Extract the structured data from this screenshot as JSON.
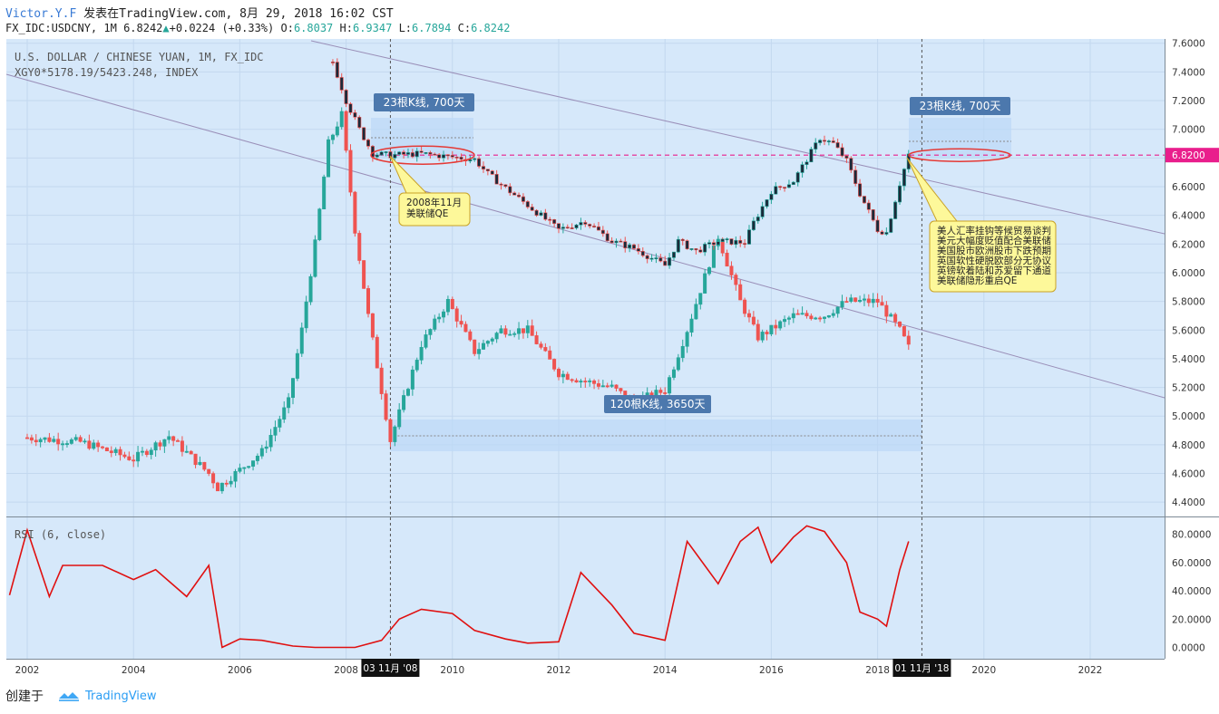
{
  "header": {
    "author": "Victor.Y.F",
    "publish_text": "发表在TradingView.com, 8月 29, 2018 16:02 CST",
    "symbol": "FX_IDC:USDCNY, 1M",
    "last": "6.8242",
    "change": "+0.0224 (+0.33%)",
    "open_label": "O:",
    "open": "6.8037",
    "high_label": "H:",
    "high": "6.9347",
    "low_label": "L:",
    "low": "6.7894",
    "close_label": "C:",
    "close": "6.8242"
  },
  "legend": {
    "line1": "U.S. DOLLAR / CHINESE YUAN, 1M, FX_IDC",
    "line2": "XGY0*5178.19/5423.248, INDEX"
  },
  "rsi_label": "RSI (6, close)",
  "price_tag": "6.8200",
  "annotations": {
    "range1": "23根K线, 700天",
    "range2": "23根K线, 700天",
    "range3": "120根K线, 3650天",
    "callout1": [
      "2008年11月",
      "美联储QE"
    ],
    "callout2": [
      "美人汇率挂钩等候贸易谈判",
      "美元大幅度贬值配合美联储",
      "美国股市欧洲股市下跌预期",
      "英国软性硬脱欧部分无协议",
      "英镑软着陆和苏爱留下通道",
      "美联储隐形重启QE"
    ],
    "date_tag1": "03 11月 '08",
    "date_tag2": "01 11月 '18"
  },
  "footer": {
    "created": "创建于",
    "brand": "TradingView"
  },
  "colors": {
    "up": "#26a69a",
    "down": "#ef5350",
    "bg": "#d6e8fa",
    "rsi": "#e01010",
    "pink": "#e91e8c",
    "trend": "#9a8fb8"
  },
  "chart_data": [
    {
      "type": "candlestick",
      "title": "U.S. DOLLAR / CHINESE YUAN, 1M, FX_IDC",
      "x_ticks": [
        "2002",
        "2004",
        "2006",
        "2008",
        "2010",
        "2012",
        "2014",
        "2016",
        "2018",
        "2020",
        "2022"
      ],
      "y_ticks": [
        "4.4000",
        "4.6000",
        "4.8000",
        "5.0000",
        "5.2000",
        "5.4000",
        "5.6000",
        "5.8000",
        "6.0000",
        "6.2000",
        "6.4000",
        "6.6000",
        "6.8000",
        "7.0000",
        "7.2000",
        "7.4000",
        "7.6000"
      ],
      "ylim": [
        4.3,
        7.63
      ],
      "usdcny_close": [
        [
          "2007-10",
          7.47
        ],
        [
          "2008-01",
          7.2
        ],
        [
          "2008-04",
          7.0
        ],
        [
          "2008-07",
          6.83
        ],
        [
          "2008-11",
          6.82
        ],
        [
          "2009-06",
          6.83
        ],
        [
          "2010-06",
          6.79
        ],
        [
          "2010-09",
          6.69
        ],
        [
          "2011-01",
          6.59
        ],
        [
          "2011-06",
          6.47
        ],
        [
          "2012-01",
          6.3
        ],
        [
          "2012-07",
          6.36
        ],
        [
          "2013-01",
          6.22
        ],
        [
          "2013-06",
          6.17
        ],
        [
          "2014-01",
          6.05
        ],
        [
          "2014-04",
          6.22
        ],
        [
          "2014-08",
          6.15
        ],
        [
          "2015-01",
          6.22
        ],
        [
          "2015-07",
          6.21
        ],
        [
          "2015-09",
          6.35
        ],
        [
          "2016-01",
          6.57
        ],
        [
          "2016-06",
          6.64
        ],
        [
          "2016-12",
          6.94
        ],
        [
          "2017-03",
          6.9
        ],
        [
          "2017-06",
          6.78
        ],
        [
          "2017-09",
          6.55
        ],
        [
          "2018-01",
          6.3
        ],
        [
          "2018-03",
          6.28
        ],
        [
          "2018-06",
          6.62
        ],
        [
          "2018-08",
          6.8242
        ]
      ],
      "index_close": [
        [
          "2002-01",
          4.85
        ],
        [
          "2003-01",
          4.82
        ],
        [
          "2004-01",
          4.7
        ],
        [
          "2004-09",
          4.86
        ],
        [
          "2005-06",
          4.6
        ],
        [
          "2005-08",
          4.5
        ],
        [
          "2006-06",
          4.75
        ],
        [
          "2006-12",
          5.1
        ],
        [
          "2007-03",
          5.6
        ],
        [
          "2007-06",
          6.2
        ],
        [
          "2007-09",
          6.9
        ],
        [
          "2007-12",
          7.1
        ],
        [
          "2008-03",
          6.3
        ],
        [
          "2008-06",
          5.7
        ],
        [
          "2008-11",
          4.83
        ],
        [
          "2009-06",
          5.5
        ],
        [
          "2009-12",
          5.8
        ],
        [
          "2010-06",
          5.45
        ],
        [
          "2010-12",
          5.6
        ],
        [
          "2011-06",
          5.6
        ],
        [
          "2012-01",
          5.3
        ],
        [
          "2012-06",
          5.25
        ],
        [
          "2013-01",
          5.2
        ],
        [
          "2013-06",
          5.1
        ],
        [
          "2014-01",
          5.18
        ],
        [
          "2014-06",
          5.6
        ],
        [
          "2015-01",
          6.25
        ],
        [
          "2015-06",
          5.8
        ],
        [
          "2015-10",
          5.55
        ],
        [
          "2016-06",
          5.7
        ],
        [
          "2017-01",
          5.7
        ],
        [
          "2017-06",
          5.8
        ],
        [
          "2018-01",
          5.8
        ],
        [
          "2018-06",
          5.6
        ],
        [
          "2018-08",
          5.48
        ]
      ],
      "reference_line": 6.82
    },
    {
      "type": "line",
      "title": "RSI (6, close)",
      "y_ticks": [
        "0.0000",
        "20.0000",
        "40.0000",
        "60.0000",
        "80.0000"
      ],
      "ylim": [
        -8,
        92
      ],
      "points": [
        [
          "2001-09",
          37
        ],
        [
          "2002-01",
          83
        ],
        [
          "2002-06",
          36
        ],
        [
          "2002-09",
          58
        ],
        [
          "2003-06",
          58
        ],
        [
          "2004-01",
          48
        ],
        [
          "2004-06",
          55
        ],
        [
          "2005-01",
          36
        ],
        [
          "2005-06",
          58
        ],
        [
          "2005-09",
          0
        ],
        [
          "2006-01",
          6
        ],
        [
          "2006-06",
          5
        ],
        [
          "2007-01",
          1
        ],
        [
          "2007-06",
          0
        ],
        [
          "2008-03",
          0
        ],
        [
          "2008-09",
          5
        ],
        [
          "2009-01",
          20
        ],
        [
          "2009-06",
          27
        ],
        [
          "2010-01",
          24
        ],
        [
          "2010-06",
          12
        ],
        [
          "2011-01",
          6
        ],
        [
          "2011-06",
          3
        ],
        [
          "2012-01",
          4
        ],
        [
          "2012-06",
          53
        ],
        [
          "2013-01",
          30
        ],
        [
          "2013-06",
          10
        ],
        [
          "2014-01",
          5
        ],
        [
          "2014-06",
          75
        ],
        [
          "2015-01",
          45
        ],
        [
          "2015-06",
          75
        ],
        [
          "2015-10",
          85
        ],
        [
          "2016-01",
          60
        ],
        [
          "2016-06",
          78
        ],
        [
          "2016-09",
          86
        ],
        [
          "2017-01",
          82
        ],
        [
          "2017-06",
          60
        ],
        [
          "2017-09",
          25
        ],
        [
          "2018-01",
          20
        ],
        [
          "2018-03",
          15
        ],
        [
          "2018-06",
          55
        ],
        [
          "2018-08",
          75
        ]
      ]
    }
  ]
}
